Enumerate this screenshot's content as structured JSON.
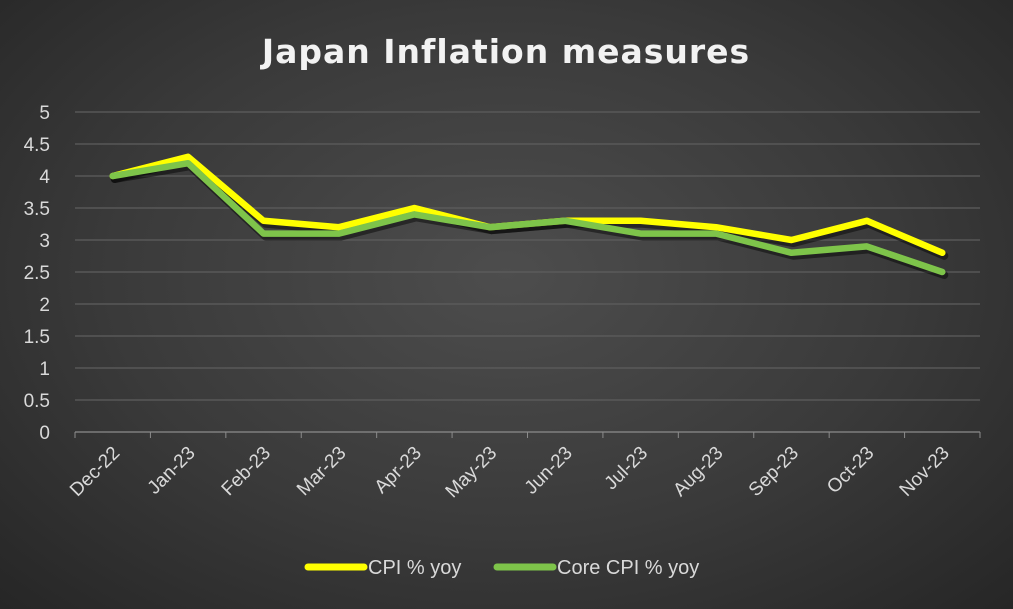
{
  "chart_data": {
    "type": "line",
    "title": "Japan Inflation measures",
    "categories": [
      "Dec-22",
      "Jan-23",
      "Feb-23",
      "Mar-23",
      "Apr-23",
      "May-23",
      "Jun-23",
      "Jul-23",
      "Aug-23",
      "Sep-23",
      "Oct-23",
      "Nov-23"
    ],
    "series": [
      {
        "name": "CPI % yoy",
        "color": "#ffff00",
        "values": [
          4.0,
          4.3,
          3.3,
          3.2,
          3.5,
          3.2,
          3.3,
          3.3,
          3.2,
          3.0,
          3.3,
          2.8
        ]
      },
      {
        "name": "Core CPI % yoy",
        "color": "#7ec44a",
        "values": [
          4.0,
          4.2,
          3.1,
          3.1,
          3.4,
          3.2,
          3.3,
          3.1,
          3.1,
          2.8,
          2.9,
          2.5
        ]
      }
    ],
    "yticks": [
      "0",
      "0.5",
      "1",
      "1.5",
      "2",
      "2.5",
      "3",
      "3.5",
      "4",
      "4.5",
      "5"
    ],
    "ylim": [
      0,
      5
    ],
    "grid": true,
    "legend": "bottom",
    "xlabel": "",
    "ylabel": ""
  }
}
